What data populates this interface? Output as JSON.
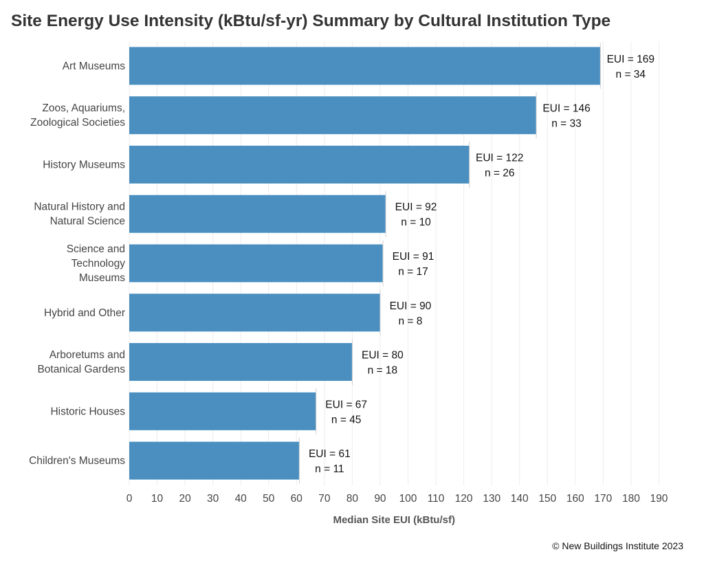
{
  "chart_data": {
    "type": "bar",
    "orientation": "horizontal",
    "title": "Site Energy Use Intensity (kBtu/sf-yr) Summary by Cultural Institution Type",
    "xlabel": "Median Site EUI (kBtu/sf)",
    "ylabel": "",
    "xlim": [
      0,
      195
    ],
    "xticks": [
      0,
      10,
      20,
      30,
      40,
      50,
      60,
      70,
      80,
      90,
      100,
      110,
      120,
      130,
      140,
      150,
      160,
      170,
      180,
      190
    ],
    "grid": true,
    "bar_color": "#4a8fc0",
    "categories": [
      [
        "Art Museums"
      ],
      [
        "Zoos, Aquariums,",
        "Zoological Societies"
      ],
      [
        "History Museums"
      ],
      [
        "Natural History and",
        "Natural Science"
      ],
      [
        "Science and",
        "Technology",
        "Museums"
      ],
      [
        "Hybrid and Other"
      ],
      [
        "Arboretums and",
        "Botanical Gardens"
      ],
      [
        "Historic Houses"
      ],
      [
        "Children's Museums"
      ]
    ],
    "values": [
      169,
      146,
      122,
      92,
      91,
      90,
      80,
      67,
      61
    ],
    "bar_labels": [
      [
        "EUI = 169",
        "n = 34"
      ],
      [
        "EUI = 146",
        "n = 33"
      ],
      [
        "EUI = 122",
        "n = 26"
      ],
      [
        "EUI = 92",
        "n = 10"
      ],
      [
        "EUI = 91",
        "n = 17"
      ],
      [
        "EUI = 90",
        "n = 8"
      ],
      [
        "EUI = 80",
        "n = 18"
      ],
      [
        "EUI = 67",
        "n = 45"
      ],
      [
        "EUI = 61",
        "n = 11"
      ]
    ]
  },
  "footer": "© New Buildings Institute 2023"
}
